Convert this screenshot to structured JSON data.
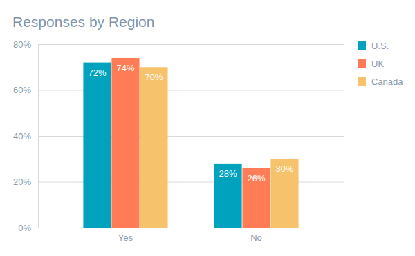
{
  "chart_data": {
    "type": "bar",
    "title": "Responses by Region",
    "categories": [
      "Yes",
      "No"
    ],
    "series": [
      {
        "name": "U.S.",
        "color": "#00a2bd",
        "values": [
          72,
          28
        ],
        "value_labels": [
          "72%",
          "28%"
        ]
      },
      {
        "name": "UK",
        "color": "#ff7c56",
        "values": [
          74,
          26
        ],
        "value_labels": [
          "74%",
          "26%"
        ]
      },
      {
        "name": "Canada",
        "color": "#f6c36c",
        "values": [
          70,
          30
        ],
        "value_labels": [
          "70%",
          "30%"
        ]
      }
    ],
    "ylim": [
      0,
      80
    ],
    "yticks": [
      {
        "value": 0,
        "label": "0%"
      },
      {
        "value": 20,
        "label": "20%"
      },
      {
        "value": 40,
        "label": "40%"
      },
      {
        "value": 60,
        "label": "60%"
      },
      {
        "value": 80,
        "label": "80%"
      }
    ],
    "grid": true,
    "legend": "top-right",
    "data_labels": true
  }
}
